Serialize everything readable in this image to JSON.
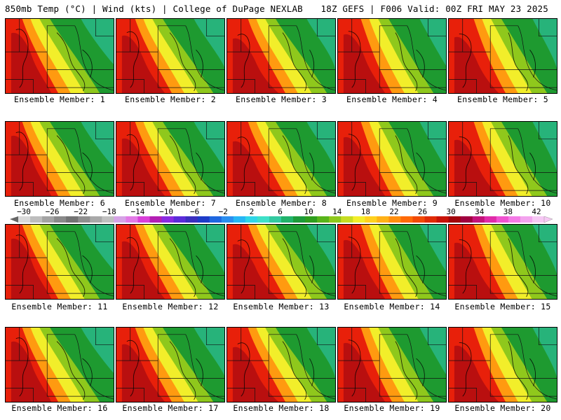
{
  "header": {
    "left": "850mb Temp (°C) | Wind (kts) | College of DuPage NEXLAB",
    "right": "18Z GEFS | F006 Valid: 00Z FRI MAY 23 2025"
  },
  "members": [
    {
      "label": "Ensemble Member: 1"
    },
    {
      "label": "Ensemble Member: 2"
    },
    {
      "label": "Ensemble Member: 3"
    },
    {
      "label": "Ensemble Member: 4"
    },
    {
      "label": "Ensemble Member: 5"
    },
    {
      "label": "Ensemble Member: 6"
    },
    {
      "label": "Ensemble Member: 7"
    },
    {
      "label": "Ensemble Member: 8"
    },
    {
      "label": "Ensemble Member: 9"
    },
    {
      "label": "Ensemble Member: 10"
    },
    {
      "label": "Ensemble Member: 11"
    },
    {
      "label": "Ensemble Member: 12"
    },
    {
      "label": "Ensemble Member: 13"
    },
    {
      "label": "Ensemble Member: 14"
    },
    {
      "label": "Ensemble Member: 15"
    },
    {
      "label": "Ensemble Member: 16"
    },
    {
      "label": "Ensemble Member: 17"
    },
    {
      "label": "Ensemble Member: 18"
    },
    {
      "label": "Ensemble Member: 19"
    },
    {
      "label": "Ensemble Member: 20"
    }
  ],
  "colorbar": {
    "ticks": [
      "−30",
      "−26",
      "−22",
      "−18",
      "−14",
      "−10",
      "−6",
      "−2",
      "2",
      "6",
      "10",
      "14",
      "18",
      "22",
      "26",
      "30",
      "34",
      "38",
      "42"
    ],
    "colors": [
      "#d9d9d9",
      "#bdbdbd",
      "#a3a3a3",
      "#8a8a8a",
      "#737373",
      "#8f8f8f",
      "#a8a8a8",
      "#c0c0c0",
      "#d6a3e6",
      "#e27be6",
      "#d940d9",
      "#b31fb3",
      "#8a2be2",
      "#5b2bd9",
      "#3b2fbf",
      "#1e3cc8",
      "#1f67e0",
      "#2a8ef0",
      "#26b6f5",
      "#2fd6e8",
      "#3ee0c8",
      "#33c9a0",
      "#21b36b",
      "#1d9b3a",
      "#2e9e1e",
      "#58b41a",
      "#8fc81c",
      "#c6dc22",
      "#f2ee2a",
      "#ffd11f",
      "#ffb117",
      "#ff8e0e",
      "#ff6a08",
      "#f24a06",
      "#e02b05",
      "#c81207",
      "#a3050c",
      "#a0003f",
      "#c3127a",
      "#e02aa8",
      "#f052d0",
      "#f47ae6",
      "#f3a3ee",
      "#f6c8f4"
    ]
  },
  "colors": {
    "green_dark": "#1e9a30",
    "green_teal": "#27b37a",
    "yellow": "#f2ee2a",
    "orange": "#ff9a10",
    "red": "#e8200a",
    "dark_red": "#b00d10"
  }
}
